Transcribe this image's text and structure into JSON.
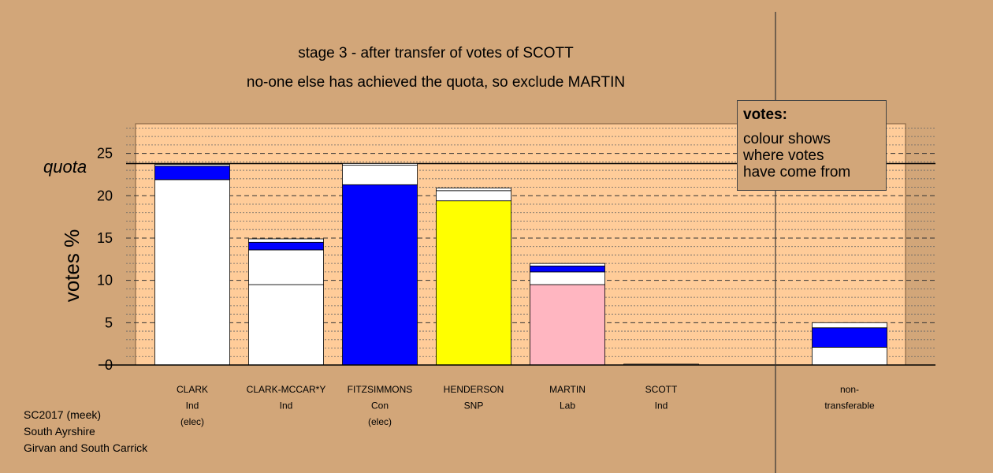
{
  "chart_data": {
    "type": "bar",
    "title": "stage 3 - after transfer of votes of SCOTT",
    "subtitle": "no-one else has achieved the quota, so exclude MARTIN",
    "ylabel": "votes %",
    "ylim": [
      0,
      28.5
    ],
    "yticks": [
      "0",
      "5",
      "10",
      "15",
      "20",
      "25"
    ],
    "quota_label": "quota",
    "quota": 23.8,
    "categories": [
      {
        "name": "CLARK",
        "party": "Ind",
        "note": "(elec)"
      },
      {
        "name": "CLARK-MCCAR*Y",
        "party": "Ind",
        "note": ""
      },
      {
        "name": "FITZSIMMONS",
        "party": "Con",
        "note": "(elec)"
      },
      {
        "name": "HENDERSON",
        "party": "SNP",
        "note": ""
      },
      {
        "name": "MARTIN",
        "party": "Lab",
        "note": ""
      },
      {
        "name": "SCOTT",
        "party": "Ind",
        "note": ""
      },
      {
        "name": "non-",
        "party": "transferable",
        "note": ""
      }
    ],
    "stacks": [
      [
        {
          "value": 21.9,
          "color": "#ffffff"
        },
        {
          "value": 1.6,
          "color": "#0000ff"
        },
        {
          "value": 0.2,
          "color": "#ffffff"
        }
      ],
      [
        {
          "value": 9.5,
          "color": "#ffffff"
        },
        {
          "value": 4.1,
          "color": "#ffffff"
        },
        {
          "value": 0.9,
          "color": "#0000ff"
        },
        {
          "value": 0.4,
          "color": "#ffffff"
        }
      ],
      [
        {
          "value": 21.3,
          "color": "#0000ff"
        },
        {
          "value": 2.3,
          "color": "#ffffff"
        },
        {
          "value": 0.2,
          "color": "#ffffff"
        }
      ],
      [
        {
          "value": 19.4,
          "color": "#ffff00"
        },
        {
          "value": 1.2,
          "color": "#ffffff"
        },
        {
          "value": 0.3,
          "color": "#ffffff"
        }
      ],
      [
        {
          "value": 9.5,
          "color": "#ffb6c1"
        },
        {
          "value": 1.5,
          "color": "#ffffff"
        },
        {
          "value": 0.7,
          "color": "#0000ff"
        },
        {
          "value": 0.3,
          "color": "#ffffff"
        }
      ],
      [
        {
          "value": 0.1,
          "color": "#ffffff"
        }
      ],
      [
        {
          "value": 2.1,
          "color": "#ffffff"
        },
        {
          "value": 2.3,
          "color": "#0000ff"
        },
        {
          "value": 0.6,
          "color": "#ffffff"
        }
      ]
    ],
    "colors": {
      "plot_background": "#ffcc99",
      "page_background": "#d2a679"
    }
  },
  "legend": {
    "title": "votes:",
    "body": [
      "colour shows",
      "where votes",
      "have come from"
    ]
  },
  "footer": [
    "SC2017 (meek)",
    "South Ayrshire",
    "Girvan and South Carrick"
  ]
}
